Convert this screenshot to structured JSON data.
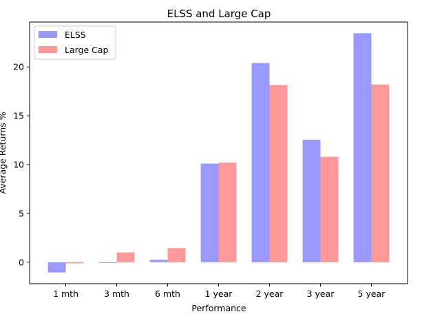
{
  "chart_data": {
    "type": "bar",
    "title": "ELSS and Large Cap",
    "xlabel": "Performance",
    "ylabel": "Average Returns %",
    "categories": [
      "1 mth",
      "3 mth",
      "6 mth",
      "1 year",
      "2 year",
      "3 year",
      "5 year"
    ],
    "series": [
      {
        "name": "ELSS",
        "color": "#9999ff",
        "values": [
          -1.05,
          -0.08,
          0.25,
          10.1,
          20.4,
          12.55,
          23.45
        ]
      },
      {
        "name": "Large Cap",
        "color": "#ff9999",
        "values": [
          -0.12,
          1.0,
          1.45,
          10.2,
          18.15,
          10.8,
          18.2
        ]
      }
    ],
    "ylim": [
      -2.2,
      24.6
    ],
    "yticks": [
      0,
      5,
      10,
      15,
      20
    ],
    "grid": false,
    "legend_position": "top-left"
  }
}
